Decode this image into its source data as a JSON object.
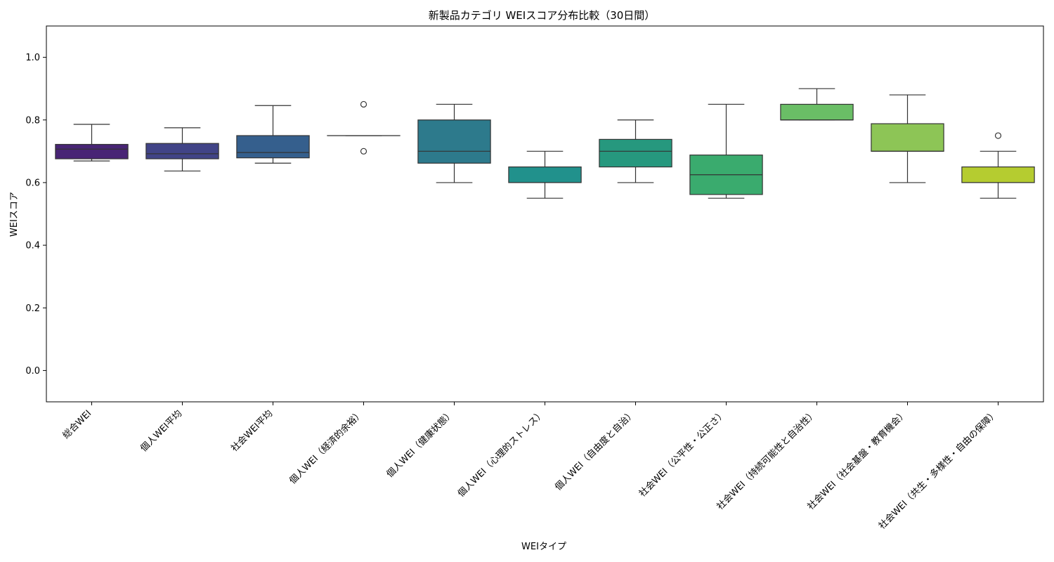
{
  "chart_data": {
    "type": "box",
    "title": "新製品カテゴリ WEIスコア分布比較（30日間）",
    "xlabel": "WEIタイプ",
    "ylabel": "WEIスコア",
    "ylim": [
      -0.1,
      1.1
    ],
    "yticks": [
      "0.0",
      "0.2",
      "0.4",
      "0.6",
      "0.8",
      "1.0"
    ],
    "grid": false,
    "categories": [
      "総合WEI",
      "個人WEI平均",
      "社会WEI平均",
      "個人WEI（経済的余裕）",
      "個人WEI（健康状態）",
      "個人WEI（心理的ストレス）",
      "個人WEI（自由度と自治）",
      "社会WEI（公平性・公正さ）",
      "社会WEI（持続可能性と自治性）",
      "社会WEI（社会基盤・教育機会）",
      "社会WEI（共生・多様性・自由の保障）"
    ],
    "boxes": [
      {
        "min": 0.669,
        "q1": 0.676,
        "median": 0.707,
        "q3": 0.722,
        "max": 0.786,
        "outliers": [],
        "color": "#482475"
      },
      {
        "min": 0.637,
        "q1": 0.676,
        "median": 0.692,
        "q3": 0.725,
        "max": 0.775,
        "outliers": [],
        "color": "#414487"
      },
      {
        "min": 0.662,
        "q1": 0.679,
        "median": 0.696,
        "q3": 0.75,
        "max": 0.846,
        "outliers": [],
        "color": "#355f8d"
      },
      {
        "min": 0.75,
        "q1": 0.75,
        "median": 0.75,
        "q3": 0.75,
        "max": 0.75,
        "outliers": [
          0.85,
          0.7
        ],
        "color": "#2a788e"
      },
      {
        "min": 0.6,
        "q1": 0.662,
        "median": 0.7,
        "q3": 0.8,
        "max": 0.85,
        "outliers": [],
        "color": "#2d7a8c"
      },
      {
        "min": 0.55,
        "q1": 0.6,
        "median": 0.6,
        "q3": 0.65,
        "max": 0.7,
        "outliers": [],
        "color": "#21918c"
      },
      {
        "min": 0.6,
        "q1": 0.65,
        "median": 0.7,
        "q3": 0.738,
        "max": 0.8,
        "outliers": [],
        "color": "#26987e"
      },
      {
        "min": 0.55,
        "q1": 0.562,
        "median": 0.625,
        "q3": 0.688,
        "max": 0.85,
        "outliers": [],
        "color": "#3aab6e"
      },
      {
        "min": 0.8,
        "q1": 0.8,
        "median": 0.8,
        "q3": 0.85,
        "max": 0.9,
        "outliers": [],
        "color": "#6abe66"
      },
      {
        "min": 0.6,
        "q1": 0.7,
        "median": 0.7,
        "q3": 0.788,
        "max": 0.88,
        "outliers": [],
        "color": "#8dc556"
      },
      {
        "min": 0.55,
        "q1": 0.6,
        "median": 0.6,
        "q3": 0.65,
        "max": 0.7,
        "outliers": [
          0.75
        ],
        "color": "#b5cc30"
      }
    ]
  }
}
